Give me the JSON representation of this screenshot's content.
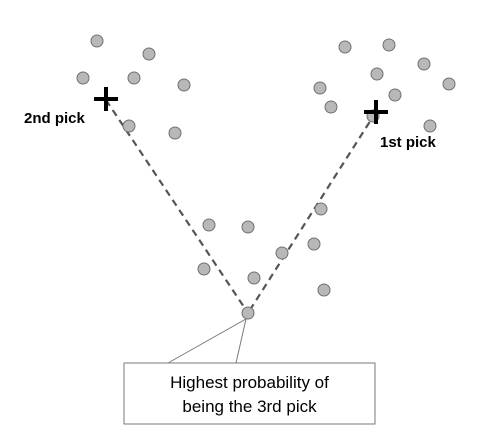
{
  "diagram": {
    "first_pick_label": "1st pick",
    "second_pick_label": "2nd pick",
    "callout_line1": "Highest probability of",
    "callout_line2": "being the 3rd pick"
  },
  "colors": {
    "point_fill": "#b8b8b8",
    "point_stroke": "#707070",
    "dashed_line": "#555555",
    "callout_border": "#7a7a7a",
    "marker": "#000000"
  }
}
